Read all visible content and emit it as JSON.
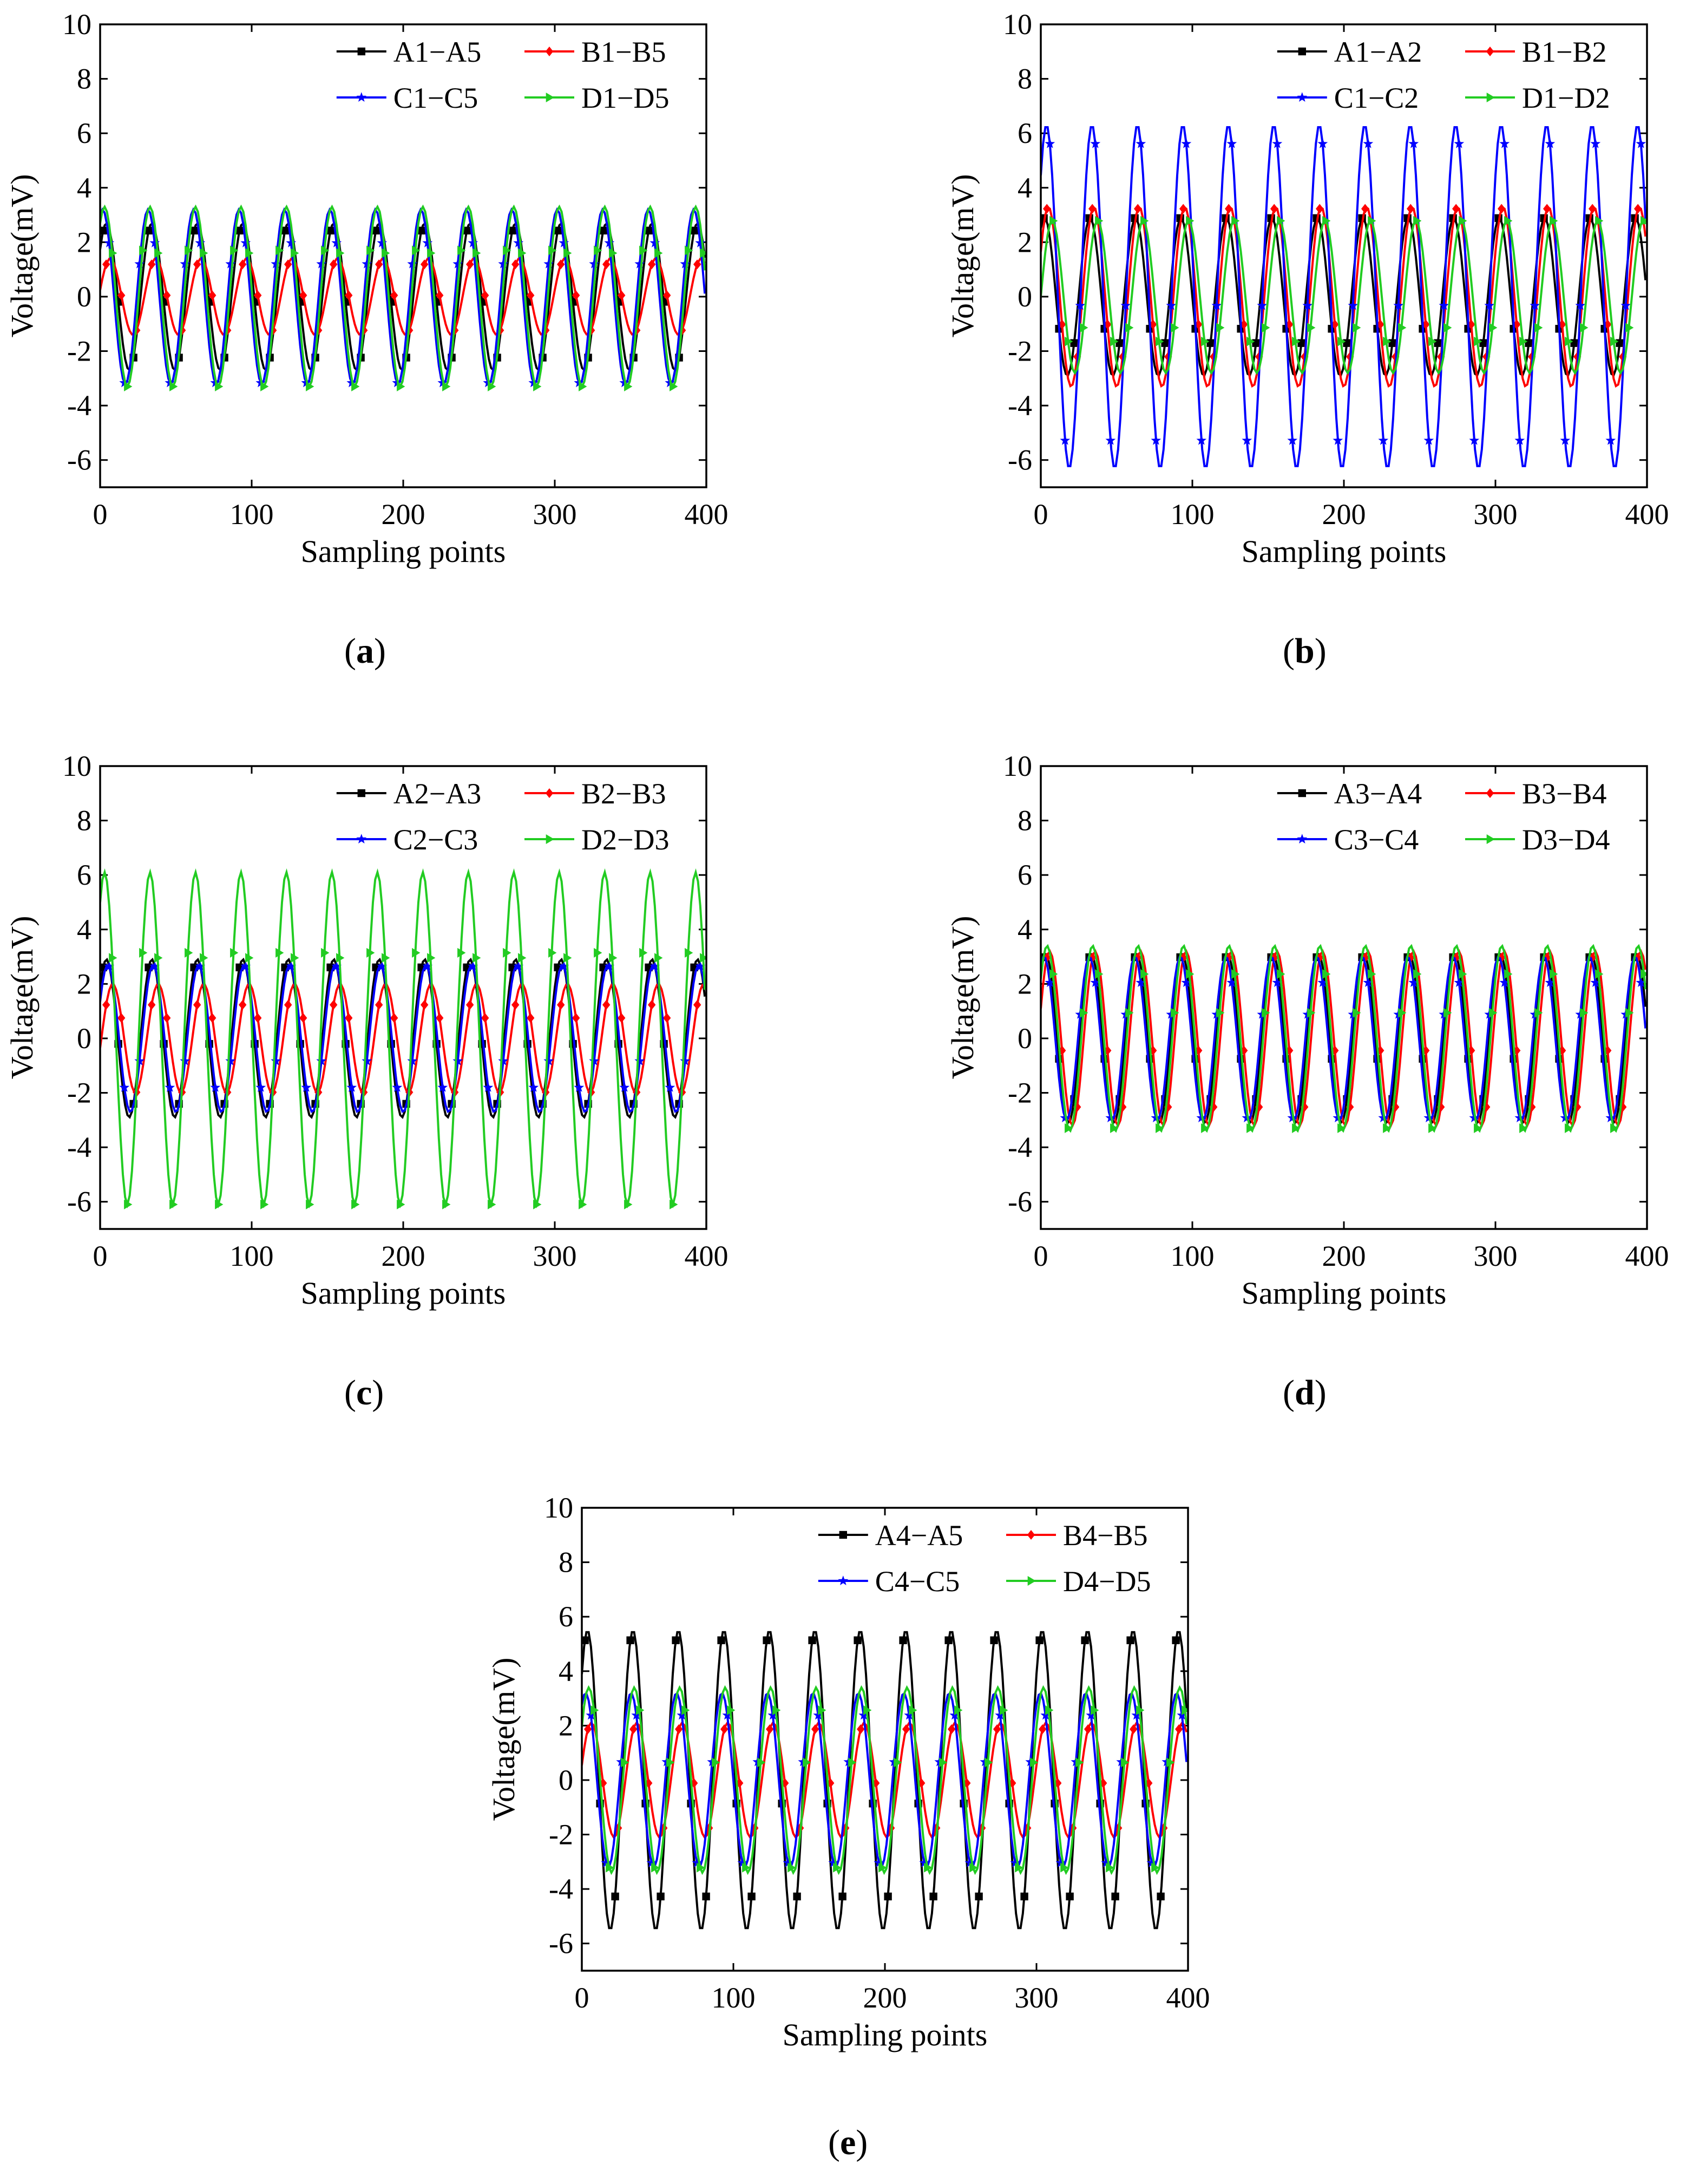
{
  "figure": {
    "panel_labels": [
      "a",
      "b",
      "c",
      "d",
      "e"
    ]
  },
  "colors": {
    "black": "#000000",
    "red": "#ff0000",
    "blue": "#0000ff",
    "green": "#22cc22"
  },
  "chart_data": [
    {
      "id": "a",
      "type": "line",
      "xlabel": "Sampling points",
      "ylabel": "Voltage(mV)",
      "xlim": [
        0,
        400
      ],
      "ylim": [
        -7,
        10
      ],
      "xticks": [
        0,
        100,
        200,
        300,
        400
      ],
      "yticks": [
        -6,
        -4,
        -2,
        0,
        2,
        4,
        6,
        8,
        10
      ],
      "legend_position": "top-right",
      "period_points": 30,
      "series": [
        {
          "name": "A1−A5",
          "color": "#000000",
          "marker": "square",
          "amplitude": 2.7,
          "phase_deg": 40
        },
        {
          "name": "B1−B5",
          "color": "#ff0000",
          "marker": "diamond",
          "amplitude": 1.4,
          "phase_deg": 10
        },
        {
          "name": "C1−C5",
          "color": "#0000ff",
          "marker": "star",
          "amplitude": 3.2,
          "phase_deg": 70
        },
        {
          "name": "D1−D5",
          "color": "#22cc22",
          "marker": "triangle-right",
          "amplitude": 3.3,
          "phase_deg": 55
        }
      ]
    },
    {
      "id": "b",
      "type": "line",
      "xlabel": "Sampling points",
      "ylabel": "Voltage(mV)",
      "xlim": [
        0,
        400
      ],
      "ylim": [
        -7,
        10
      ],
      "xticks": [
        0,
        100,
        200,
        300,
        400
      ],
      "yticks": [
        -6,
        -4,
        -2,
        0,
        2,
        4,
        6,
        8,
        10
      ],
      "legend_position": "top-right",
      "period_points": 30,
      "series": [
        {
          "name": "A1−A2",
          "color": "#000000",
          "marker": "square",
          "amplitude": 2.9,
          "phase_deg": 60
        },
        {
          "name": "B1−B2",
          "color": "#ff0000",
          "marker": "diamond",
          "amplitude": 3.3,
          "phase_deg": 30
        },
        {
          "name": "C1−C2",
          "color": "#0000ff",
          "marker": "star",
          "amplitude": 6.3,
          "phase_deg": 45
        },
        {
          "name": "D1−D2",
          "color": "#22cc22",
          "marker": "triangle-right",
          "amplitude": 2.8,
          "phase_deg": 0
        }
      ]
    },
    {
      "id": "c",
      "type": "line",
      "xlabel": "Sampling points",
      "ylabel": "Voltage(mV)",
      "xlim": [
        0,
        400
      ],
      "ylim": [
        -7,
        10
      ],
      "xticks": [
        0,
        100,
        200,
        300,
        400
      ],
      "yticks": [
        -6,
        -4,
        -2,
        0,
        2,
        4,
        6,
        8,
        10
      ],
      "legend_position": "top-right",
      "period_points": 30,
      "series": [
        {
          "name": "A2−A3",
          "color": "#000000",
          "marker": "square",
          "amplitude": 2.9,
          "phase_deg": 40
        },
        {
          "name": "B2−B3",
          "color": "#ff0000",
          "marker": "diamond",
          "amplitude": 2.0,
          "phase_deg": -10
        },
        {
          "name": "C2−C3",
          "color": "#0000ff",
          "marker": "star",
          "amplitude": 2.7,
          "phase_deg": 30
        },
        {
          "name": "D2−D3",
          "color": "#22cc22",
          "marker": "triangle-right",
          "amplitude": 6.1,
          "phase_deg": 55
        }
      ]
    },
    {
      "id": "d",
      "type": "line",
      "xlabel": "Sampling points",
      "ylabel": "Voltage(mV)",
      "xlim": [
        0,
        400
      ],
      "ylim": [
        -7,
        10
      ],
      "xticks": [
        0,
        100,
        200,
        300,
        400
      ],
      "yticks": [
        -6,
        -4,
        -2,
        0,
        2,
        4,
        6,
        8,
        10
      ],
      "legend_position": "top-right",
      "period_points": 30,
      "series": [
        {
          "name": "A3−A4",
          "color": "#000000",
          "marker": "square",
          "amplitude": 3.1,
          "phase_deg": 50
        },
        {
          "name": "B3−B4",
          "color": "#ff0000",
          "marker": "diamond",
          "amplitude": 3.2,
          "phase_deg": 20
        },
        {
          "name": "C3−C4",
          "color": "#0000ff",
          "marker": "star",
          "amplitude": 3.0,
          "phase_deg": 65
        },
        {
          "name": "D3−D4",
          "color": "#22cc22",
          "marker": "triangle-right",
          "amplitude": 3.4,
          "phase_deg": 40
        }
      ]
    },
    {
      "id": "e",
      "type": "line",
      "xlabel": "Sampling points",
      "ylabel": "Voltage(mV)",
      "xlim": [
        0,
        400
      ],
      "ylim": [
        -7,
        10
      ],
      "xticks": [
        0,
        100,
        200,
        300,
        400
      ],
      "yticks": [
        -6,
        -4,
        -2,
        0,
        2,
        4,
        6,
        8,
        10
      ],
      "legend_position": "top-right",
      "period_points": 30,
      "series": [
        {
          "name": "A4−A5",
          "color": "#000000",
          "marker": "square",
          "amplitude": 5.5,
          "phase_deg": 45
        },
        {
          "name": "B4−B5",
          "color": "#ff0000",
          "marker": "diamond",
          "amplitude": 2.1,
          "phase_deg": 15
        },
        {
          "name": "C4−C5",
          "color": "#0000ff",
          "marker": "star",
          "amplitude": 3.2,
          "phase_deg": 60
        },
        {
          "name": "D4−D5",
          "color": "#22cc22",
          "marker": "triangle-right",
          "amplitude": 3.4,
          "phase_deg": 35
        }
      ]
    }
  ]
}
